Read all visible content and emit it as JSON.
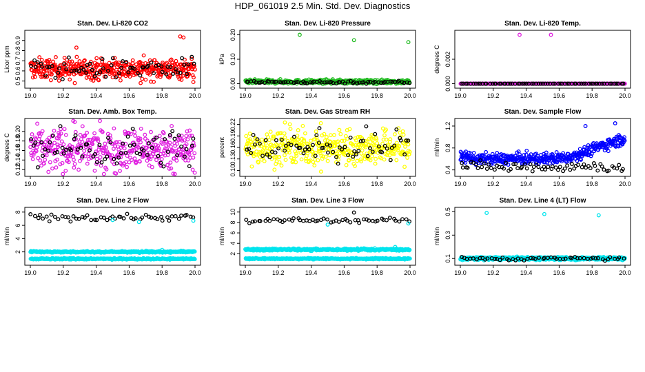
{
  "title": "HDP_061019  2.5 Min. Std. Dev. Diagnostics",
  "colors": {
    "red": "#ff0000",
    "green": "#22bb22",
    "magenta": "#e020e0",
    "yellow": "#ffff00",
    "blue": "#0000ff",
    "cyan": "#00e5ee",
    "black": "#000000"
  },
  "chart_data": [
    {
      "type": "scatter",
      "title": "Stan. Dev. Li-820 CO2",
      "ylabel": "Licor ppm",
      "xlim": [
        19.0,
        20.0
      ],
      "ylim": [
        0.45,
        0.98
      ],
      "xticks": [
        "19.0",
        "19.2",
        "19.4",
        "19.6",
        "19.8",
        "20.0"
      ],
      "yticks": [
        {
          "v": 0.5,
          "label": "0.5"
        },
        {
          "v": 0.6,
          "label": "0.6"
        },
        {
          "v": 0.7,
          "label": "0.7"
        },
        {
          "v": 0.8,
          "label": "0.8"
        },
        {
          "v": 0.9,
          "label": "0.9"
        }
      ],
      "series": [
        {
          "name": "dense",
          "color": "red",
          "bands": [
            [
              0.62,
              0.05
            ]
          ],
          "count": 420
        },
        {
          "name": "sparse",
          "color": "black",
          "bands": [
            [
              0.62,
              0.05
            ]
          ],
          "count": 70
        }
      ],
      "outliers": [
        {
          "x": 19.28,
          "y": 0.83,
          "color": "red"
        },
        {
          "x": 19.91,
          "y": 0.94,
          "color": "red"
        },
        {
          "x": 19.93,
          "y": 0.93,
          "color": "red"
        },
        {
          "x": 19.67,
          "y": 0.48,
          "color": "red"
        },
        {
          "x": 19.27,
          "y": 0.48,
          "color": "red"
        },
        {
          "x": 19.99,
          "y": 0.49,
          "color": "red"
        }
      ]
    },
    {
      "type": "scatter",
      "title": "Stan. Dev. Li-820 Pressure",
      "ylabel": "kPa",
      "xlim": [
        19.0,
        20.0
      ],
      "ylim": [
        -0.01,
        0.21
      ],
      "xticks": [
        "19.0",
        "19.2",
        "19.4",
        "19.6",
        "19.8",
        "20.0"
      ],
      "yticks": [
        {
          "v": 0.0,
          "label": "0.00"
        },
        {
          "v": 0.1,
          "label": "0.10"
        },
        {
          "v": 0.2,
          "label": "0.20"
        }
      ],
      "series": [
        {
          "name": "dense",
          "color": "green",
          "bands": [
            [
              0.008,
              0.004
            ]
          ],
          "count": 420
        },
        {
          "name": "sparse",
          "color": "black",
          "bands": [
            [
              0.006,
              0.003
            ]
          ],
          "count": 70
        }
      ],
      "outliers": [
        {
          "x": 19.33,
          "y": 0.2,
          "color": "green"
        },
        {
          "x": 19.66,
          "y": 0.178,
          "color": "green"
        },
        {
          "x": 19.99,
          "y": 0.17,
          "color": "green"
        }
      ]
    },
    {
      "type": "scatter",
      "title": "Stan. Dev. Li-820 Temp.",
      "ylabel": "degrees C",
      "xlim": [
        19.0,
        20.0
      ],
      "ylim": [
        -0.0002,
        0.0042
      ],
      "xticks": [
        "19.0",
        "19.2",
        "19.4",
        "19.6",
        "19.8",
        "20.0"
      ],
      "yticks": [
        {
          "v": 0.0,
          "label": "0.000"
        },
        {
          "v": 0.002,
          "label": "0.002"
        }
      ],
      "series": [
        {
          "name": "dense",
          "color": "magenta",
          "bands": [
            [
              0.0,
              0.0
            ]
          ],
          "count": 420
        },
        {
          "name": "sparse",
          "color": "black",
          "bands": [
            [
              0.0,
              0.0
            ]
          ],
          "count": 70
        }
      ],
      "outliers": [
        {
          "x": 19.36,
          "y": 0.004,
          "color": "magenta"
        },
        {
          "x": 19.55,
          "y": 0.004,
          "color": "magenta"
        }
      ]
    },
    {
      "type": "scatter",
      "title": "Stan. Dev. Amb. Box Temp.",
      "ylabel": "degrees C",
      "xlim": [
        19.0,
        20.0
      ],
      "ylim": [
        0.11,
        0.223
      ],
      "xticks": [
        "19.0",
        "19.2",
        "19.4",
        "19.6",
        "19.8",
        "20.0"
      ],
      "yticks": [
        {
          "v": 0.12,
          "label": "0.12"
        },
        {
          "v": 0.14,
          "label": "0.14"
        },
        {
          "v": 0.16,
          "label": "0.16"
        },
        {
          "v": 0.18,
          "label": "0.18"
        },
        {
          "v": 0.2,
          "label": "0.20"
        }
      ],
      "series": [
        {
          "name": "dense",
          "color": "magenta",
          "bands": [
            [
              0.162,
              0.022
            ]
          ],
          "count": 420
        },
        {
          "name": "sparse",
          "color": "black",
          "bands": [
            [
              0.165,
              0.02
            ]
          ],
          "count": 70
        }
      ],
      "outliers": [
        {
          "x": 19.27,
          "y": 0.22,
          "color": "magenta"
        },
        {
          "x": 19.11,
          "y": 0.115,
          "color": "magenta"
        }
      ]
    },
    {
      "type": "scatter",
      "title": "Stan. Dev. Gas Stream RH",
      "ylabel": "percent",
      "xlim": [
        19.0,
        20.0
      ],
      "ylim": [
        0.09,
        0.23
      ],
      "xticks": [
        "19.0",
        "19.2",
        "19.4",
        "19.6",
        "19.8",
        "20.0"
      ],
      "yticks": [
        {
          "v": 0.1,
          "label": "0.10"
        },
        {
          "v": 0.13,
          "label": "0.13"
        },
        {
          "v": 0.16,
          "label": "0.16"
        },
        {
          "v": 0.19,
          "label": "0.19"
        },
        {
          "v": 0.22,
          "label": "0.22"
        }
      ],
      "series": [
        {
          "name": "dense",
          "color": "yellow",
          "bands": [
            [
              0.16,
              0.022
            ]
          ],
          "count": 420
        },
        {
          "name": "sparse",
          "color": "black",
          "bands": [
            [
              0.16,
              0.022
            ]
          ],
          "count": 70
        }
      ],
      "outliers": [
        {
          "x": 19.24,
          "y": 0.225,
          "color": "yellow"
        },
        {
          "x": 19.45,
          "y": 0.21,
          "color": "black"
        },
        {
          "x": 19.46,
          "y": 0.097,
          "color": "yellow"
        }
      ]
    },
    {
      "type": "scatter",
      "title": "Stan. Dev. Sample Flow",
      "ylabel": "ml/min",
      "xlim": [
        19.0,
        20.0
      ],
      "ylim": [
        0.32,
        1.3
      ],
      "xticks": [
        "19.0",
        "19.2",
        "19.4",
        "19.6",
        "19.8",
        "20.0"
      ],
      "yticks": [
        {
          "v": 0.4,
          "label": "0.4"
        },
        {
          "v": 0.8,
          "label": "0.8"
        },
        {
          "v": 1.2,
          "label": "1.2"
        }
      ],
      "trend": {
        "x": [
          19.0,
          19.1,
          19.3,
          19.5,
          19.65,
          19.75,
          19.85,
          19.95,
          20.0
        ],
        "y": [
          0.66,
          0.6,
          0.6,
          0.6,
          0.63,
          0.72,
          0.83,
          0.93,
          0.97
        ]
      },
      "series": [
        {
          "name": "dense",
          "color": "blue",
          "bands": [
            [
              0.0,
              0.05
            ]
          ],
          "count": 420,
          "useTrend": true
        },
        {
          "name": "sparse",
          "color": "black",
          "bands": [
            [
              0.46,
              0.05
            ]
          ],
          "count": 70
        }
      ],
      "outliers": [
        {
          "x": 19.94,
          "y": 1.25,
          "color": "blue"
        },
        {
          "x": 19.76,
          "y": 1.2,
          "color": "blue"
        }
      ]
    },
    {
      "type": "scatter",
      "title": "Stan. Dev. Line 2 Flow",
      "ylabel": "ml/min",
      "xlim": [
        19.0,
        20.0
      ],
      "ylim": [
        0.3,
        8.4
      ],
      "xticks": [
        "19.0",
        "19.2",
        "19.4",
        "19.6",
        "19.8",
        "20.0"
      ],
      "yticks": [
        {
          "v": 2,
          "label": "2"
        },
        {
          "v": 4,
          "label": "4"
        },
        {
          "v": 6,
          "label": "6"
        },
        {
          "v": 8,
          "label": "8"
        }
      ],
      "series": [
        {
          "name": "dense",
          "color": "cyan",
          "bands": [
            [
              2.0,
              0.06
            ],
            [
              0.95,
              0.05
            ]
          ],
          "count": 700
        },
        {
          "name": "sparse",
          "color": "black",
          "bands": [
            [
              7.2,
              0.25
            ]
          ],
          "count": 55
        }
      ],
      "outliers": [
        {
          "x": 19.5,
          "y": 6.8,
          "color": "cyan"
        },
        {
          "x": 19.66,
          "y": 6.5,
          "color": "cyan"
        },
        {
          "x": 19.99,
          "y": 6.7,
          "color": "cyan"
        },
        {
          "x": 19.8,
          "y": 2.3,
          "color": "cyan"
        }
      ]
    },
    {
      "type": "scatter",
      "title": "Stan. Dev. Line 3 Flow",
      "ylabel": "ml/min",
      "xlim": [
        19.0,
        20.0
      ],
      "ylim": [
        0.2,
        10.5
      ],
      "xticks": [
        "19.0",
        "19.2",
        "19.4",
        "19.6",
        "19.8",
        "20.0"
      ],
      "yticks": [
        {
          "v": 2,
          "label": "2"
        },
        {
          "v": 4,
          "label": "4"
        },
        {
          "v": 6,
          "label": "6"
        },
        {
          "v": 8,
          "label": "8"
        },
        {
          "v": 10,
          "label": "10"
        }
      ],
      "series": [
        {
          "name": "dense",
          "color": "cyan",
          "bands": [
            [
              2.8,
              0.1
            ],
            [
              1.05,
              0.06
            ]
          ],
          "count": 700
        },
        {
          "name": "sparse",
          "color": "black",
          "bands": [
            [
              8.4,
              0.25
            ]
          ],
          "count": 55
        }
      ],
      "outliers": [
        {
          "x": 19.5,
          "y": 7.6,
          "color": "cyan"
        },
        {
          "x": 19.99,
          "y": 7.8,
          "color": "cyan"
        },
        {
          "x": 19.91,
          "y": 3.3,
          "color": "cyan"
        },
        {
          "x": 19.66,
          "y": 9.9,
          "color": "black"
        }
      ]
    },
    {
      "type": "scatter",
      "title": "Stan. Dev. Line 4 (LT) Flow",
      "ylabel": "ml/min",
      "xlim": [
        19.0,
        20.0
      ],
      "ylim": [
        0.06,
        0.52
      ],
      "xticks": [
        "19.0",
        "19.2",
        "19.4",
        "19.6",
        "19.8",
        "20.0"
      ],
      "yticks": [
        {
          "v": 0.1,
          "label": "0.1"
        },
        {
          "v": 0.3,
          "label": "0.3"
        },
        {
          "v": 0.5,
          "label": "0.5"
        }
      ],
      "series": [
        {
          "name": "dense",
          "color": "cyan",
          "bands": [
            [
              0.1,
              0.006
            ]
          ],
          "count": 700
        },
        {
          "name": "sparse",
          "color": "black",
          "bands": [
            [
              0.098,
              0.007
            ]
          ],
          "count": 55
        }
      ],
      "outliers": [
        {
          "x": 19.16,
          "y": 0.49,
          "color": "cyan"
        },
        {
          "x": 19.51,
          "y": 0.48,
          "color": "cyan"
        },
        {
          "x": 19.84,
          "y": 0.47,
          "color": "cyan"
        }
      ]
    }
  ]
}
